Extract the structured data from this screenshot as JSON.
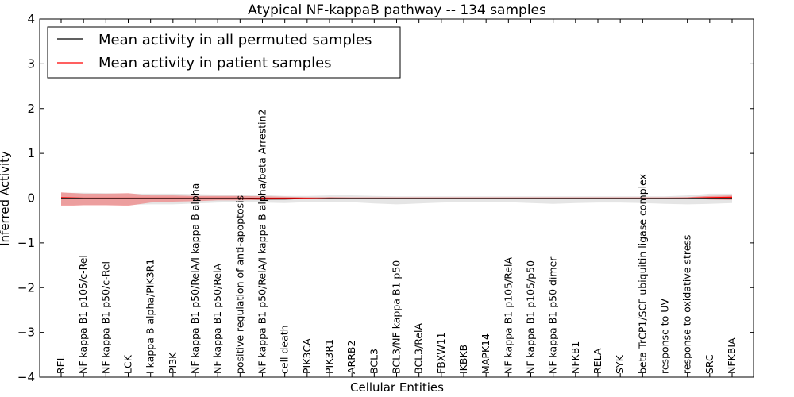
{
  "chart_data": {
    "type": "line",
    "title": "Atypical NF-kappaB pathway -- 134 samples",
    "xlabel": "Cellular Entities",
    "ylabel": "Inferred Activity",
    "ylim": [
      -4,
      4
    ],
    "yticks": [
      -4,
      -3,
      -2,
      -1,
      0,
      1,
      2,
      3,
      4
    ],
    "ytick_labels": [
      "−4",
      "−3",
      "−2",
      "−1",
      "0",
      "1",
      "2",
      "3",
      "4"
    ],
    "grid": false,
    "legend_position": "top-left",
    "categories": [
      "REL",
      "NF kappa B1 p105/c-Rel",
      "NF kappa B1 p50/c-Rel",
      "LCK",
      "I kappa B alpha/PIK3R1",
      "PI3K",
      "NF kappa B1 p50/RelA/I kappa B alpha",
      "NF kappa B1 p50/RelA",
      "positive regulation of anti-apoptosis",
      "NF kappa B1 p50/RelA/I kappa B alpha/beta Arrestin2",
      "cell death",
      "PIK3CA",
      "PIK3R1",
      "ARRB2",
      "BCL3",
      "BCL3/NF kappa B1 p50",
      "BCL3/RelA",
      "FBXW11",
      "IKBKB",
      "MAPK14",
      "NF kappa B1 p105/RelA",
      "NF kappa B1 p105/p50",
      "NF kappa B1 p50 dimer",
      "NFKB1",
      "RELA",
      "SYK",
      "beta TrCP1/SCF ubiquitin ligase complex",
      "response to UV",
      "response to oxidative stress",
      "SRC",
      "NFKBIA"
    ],
    "series": [
      {
        "name": "Mean activity in all permuted samples",
        "color": "#000000",
        "band_color": "#d0d0d0",
        "values": [
          -0.01,
          -0.01,
          -0.01,
          -0.01,
          -0.01,
          -0.01,
          -0.01,
          -0.01,
          -0.01,
          -0.02,
          -0.02,
          -0.01,
          -0.01,
          -0.01,
          -0.01,
          -0.01,
          -0.01,
          -0.01,
          -0.01,
          -0.01,
          -0.01,
          -0.01,
          -0.01,
          -0.01,
          -0.01,
          -0.01,
          -0.01,
          -0.01,
          -0.01,
          -0.01,
          -0.01
        ],
        "band_lower": [
          -0.15,
          -0.15,
          -0.15,
          -0.15,
          -0.14,
          -0.14,
          -0.12,
          -0.1,
          -0.09,
          -0.1,
          -0.11,
          -0.09,
          -0.09,
          -0.09,
          -0.12,
          -0.14,
          -0.12,
          -0.1,
          -0.09,
          -0.08,
          -0.09,
          -0.11,
          -0.13,
          -0.11,
          -0.1,
          -0.1,
          -0.11,
          -0.13,
          -0.14,
          -0.13,
          -0.11
        ],
        "band_upper": [
          0.12,
          0.12,
          0.11,
          0.1,
          0.1,
          0.1,
          0.09,
          0.08,
          0.08,
          0.07,
          0.05,
          0.05,
          0.06,
          0.06,
          0.05,
          0.04,
          0.04,
          0.04,
          0.04,
          0.04,
          0.04,
          0.04,
          0.04,
          0.04,
          0.04,
          0.04,
          0.04,
          0.04,
          0.06,
          0.1,
          0.1
        ]
      },
      {
        "name": "Mean activity in patient samples",
        "color": "#ff0000",
        "band_color": "#f08080",
        "values": [
          0.01,
          0.0,
          0.0,
          0.0,
          0.0,
          0.0,
          0.0,
          0.0,
          0.0,
          -0.01,
          -0.01,
          -0.01,
          0.0,
          0.0,
          0.0,
          0.0,
          0.0,
          0.0,
          0.0,
          0.0,
          0.0,
          0.0,
          0.0,
          0.0,
          0.0,
          0.0,
          0.0,
          0.0,
          0.0,
          0.01,
          0.02
        ],
        "band_lower": [
          -0.18,
          -0.16,
          -0.16,
          -0.17,
          -0.1,
          -0.08,
          -0.07,
          -0.05,
          -0.05,
          -0.04,
          -0.03,
          -0.02,
          -0.02,
          -0.01,
          -0.01,
          -0.01,
          -0.01,
          -0.01,
          -0.01,
          -0.01,
          -0.01,
          -0.01,
          -0.01,
          -0.01,
          -0.01,
          -0.01,
          -0.01,
          -0.01,
          -0.01,
          -0.03,
          -0.04
        ],
        "band_upper": [
          0.13,
          0.1,
          0.1,
          0.11,
          0.06,
          0.06,
          0.05,
          0.05,
          0.05,
          0.04,
          0.03,
          0.02,
          0.02,
          0.01,
          0.01,
          0.01,
          0.01,
          0.01,
          0.01,
          0.01,
          0.01,
          0.01,
          0.01,
          0.01,
          0.01,
          0.01,
          0.01,
          0.01,
          0.02,
          0.05,
          0.06
        ]
      }
    ]
  }
}
